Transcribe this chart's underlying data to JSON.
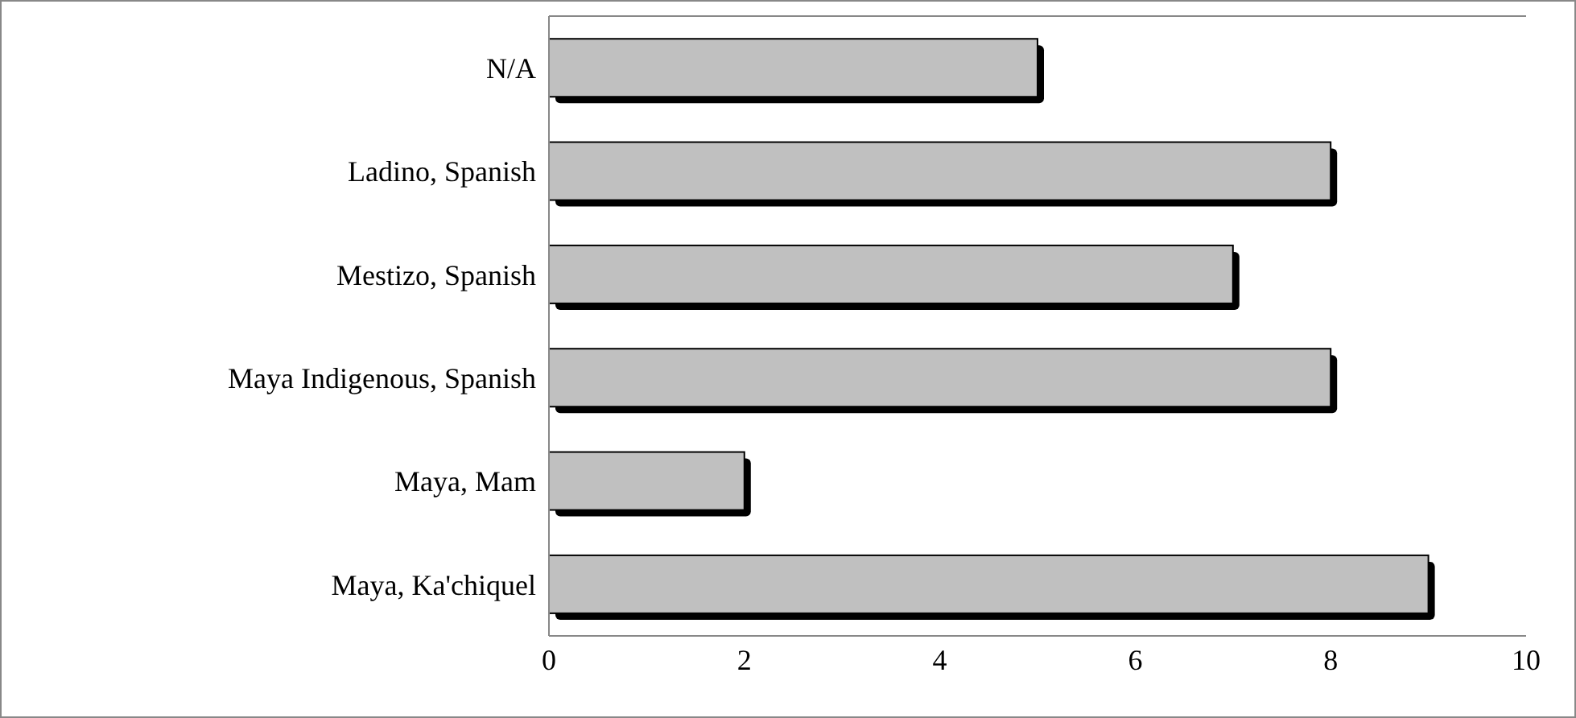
{
  "chart_data": {
    "type": "bar",
    "orientation": "horizontal",
    "categories": [
      "N/A",
      "Ladino, Spanish",
      "Mestizo, Spanish",
      "Maya Indigenous, Spanish",
      "Maya, Mam",
      "Maya, Ka'chiquel"
    ],
    "values": [
      5,
      8,
      7,
      8,
      2,
      9
    ],
    "color": "#c0c0c0",
    "xlim": [
      0,
      10
    ],
    "xticks": [
      0,
      2,
      4,
      6,
      8,
      10
    ]
  }
}
